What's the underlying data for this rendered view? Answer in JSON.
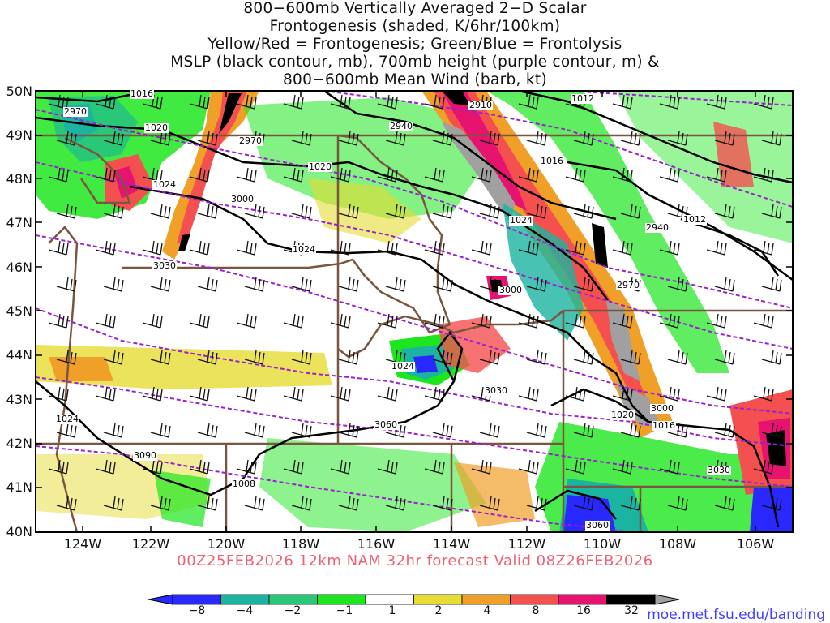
{
  "title_lines": [
    "800−600mb Vertically Averaged 2−D Scalar",
    "Frontogenesis (shaded, K/6hr/100km)",
    "Yellow/Red = Frontogenesis;  Green/Blue = Frontolysis",
    "MSLP (black contour, mb), 700mb height (purple contour, m) &",
    "800−600mb Mean Wind (barb, kt)"
  ],
  "subtitle": "00Z25FEB2026 12km NAM 32hr forecast Valid 08Z26FEB2026",
  "source": "moe.met.fsu.edu/banding",
  "lat_labels": [
    "50N",
    "49N",
    "48N",
    "47N",
    "46N",
    "45N",
    "44N",
    "43N",
    "42N",
    "41N",
    "40N"
  ],
  "lon_labels": [
    "124W",
    "122W",
    "120W",
    "118W",
    "116W",
    "114W",
    "112W",
    "110W",
    "108W",
    "106W"
  ],
  "colorbar": {
    "labels": [
      "−8",
      "−4",
      "−2",
      "−1",
      "1",
      "2",
      "4",
      "8",
      "16",
      "32"
    ],
    "colors": [
      "#2828ff",
      "#1ab4a0",
      "#28c878",
      "#1ee61e",
      "#ffffff",
      "#e6dc32",
      "#f0a028",
      "#f55050",
      "#e6146e",
      "#000000",
      "#a0a0a0"
    ]
  },
  "mslp_labels": [
    "1016",
    "1020",
    "1020",
    "1024",
    "1024",
    "1024",
    "1024",
    "1008",
    "1012",
    "1016",
    "1012",
    "1020",
    "1016",
    "1024"
  ],
  "height_labels": [
    "2970",
    "2970",
    "2940",
    "2910",
    "3000",
    "3000",
    "3030",
    "3030",
    "3060",
    "3090",
    "2940",
    "2970",
    "3000",
    "3030",
    "3060"
  ]
}
